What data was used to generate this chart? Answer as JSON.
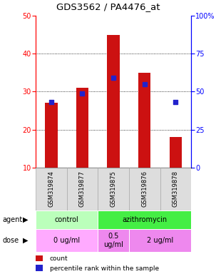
{
  "title": "GDS3562 / PA4476_at",
  "samples": [
    "GSM319874",
    "GSM319877",
    "GSM319875",
    "GSM319876",
    "GSM319878"
  ],
  "counts": [
    27,
    31,
    45,
    35,
    18
  ],
  "percentiles": [
    43,
    49,
    59,
    55,
    43
  ],
  "ylim_left": [
    10,
    50
  ],
  "ylim_right": [
    0,
    100
  ],
  "yticks_left": [
    10,
    20,
    30,
    40,
    50
  ],
  "yticks_right": [
    0,
    25,
    50,
    75,
    100
  ],
  "bar_color": "#cc1111",
  "dot_color": "#2222cc",
  "bar_width": 0.4,
  "agent_labels": [
    {
      "label": "control",
      "start": 0,
      "end": 2,
      "color": "#bbffbb"
    },
    {
      "label": "azithromycin",
      "start": 2,
      "end": 5,
      "color": "#44ee44"
    }
  ],
  "dose_labels": [
    {
      "label": "0 ug/ml",
      "start": 0,
      "end": 2,
      "color": "#ffaaff"
    },
    {
      "label": "0.5\nug/ml",
      "start": 2,
      "end": 3,
      "color": "#ee88ee"
    },
    {
      "label": "2 ug/ml",
      "start": 3,
      "end": 5,
      "color": "#ee88ee"
    }
  ],
  "legend_count_color": "#cc1111",
  "legend_pct_color": "#2222cc",
  "title_fontsize": 9.5,
  "tick_fontsize": 7,
  "sample_fontsize": 6,
  "row_fontsize": 7,
  "legend_fontsize": 6.5
}
